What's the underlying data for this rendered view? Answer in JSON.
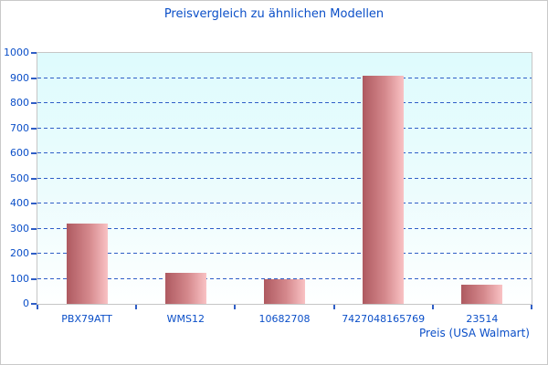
{
  "chart_data": {
    "type": "bar",
    "title": "Preisvergleich zu ähnlichen Modellen",
    "categories": [
      "PBX79ATT",
      "WMS12",
      "10682708",
      "7427048165769",
      "23514"
    ],
    "values": [
      320,
      125,
      100,
      908,
      75
    ],
    "xlabel": "Preis (USA Walmart)",
    "ylabel": "",
    "ylim": [
      0,
      1000
    ],
    "yticks": [
      0,
      100,
      200,
      300,
      400,
      500,
      600,
      700,
      800,
      900,
      1000
    ],
    "grid": "horizontal-dashed",
    "legend": "none",
    "plot_background": "cyan-to-white-vertical-gradient"
  },
  "colors": {
    "text_blue": "#0b4fc8",
    "gridline_blue": "#2f5ec6",
    "bar_gradient_dark": "#ae5960",
    "bar_gradient_light": "#f9c2c4",
    "plot_bg_top": "#defbfd",
    "plot_bg_bottom": "#feffff",
    "axis_gray": "#c6c6c6",
    "frame_border": "#c9c9c9"
  }
}
